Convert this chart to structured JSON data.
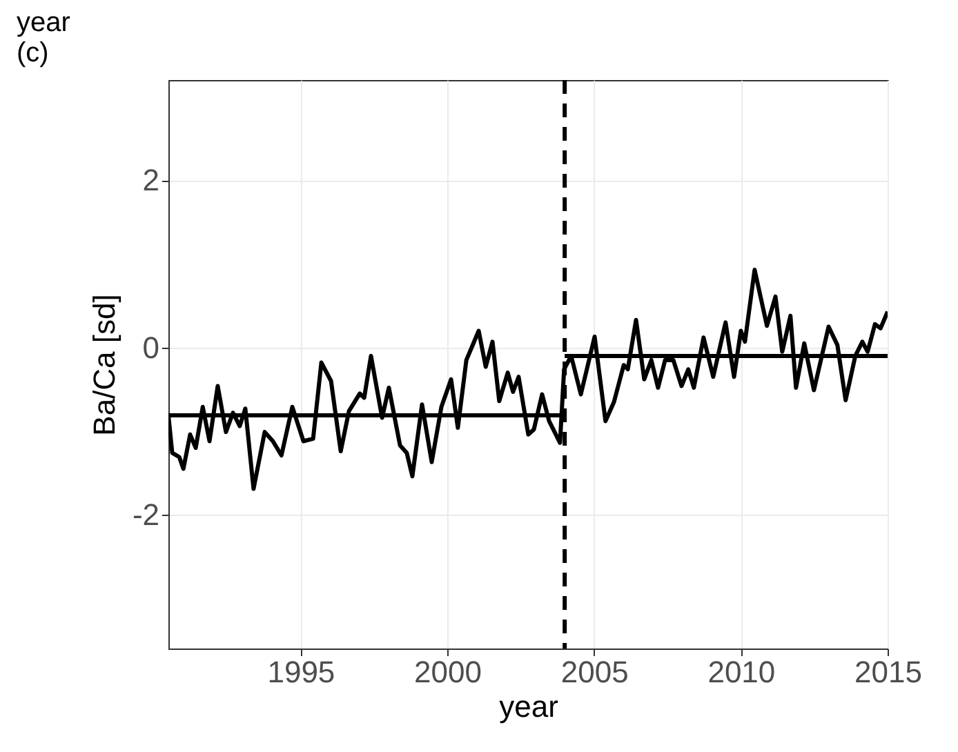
{
  "chart_data": {
    "type": "line",
    "title": "year",
    "subtitle": "(c)",
    "xlabel": "year",
    "ylabel": "Ba/Ca [sd]",
    "xlim": [
      1990.5,
      2015
    ],
    "xticks": [
      1995,
      2000,
      2005,
      2010,
      2015
    ],
    "ylim": [
      -3.6,
      3.2
    ],
    "yticks": [
      -2,
      0,
      2
    ],
    "grid": true,
    "legend": false,
    "line_style": "solid",
    "ref_lines": [
      {
        "axis": "x",
        "value": 2004,
        "line_style": "dashed",
        "color": "#000000"
      }
    ],
    "series": [
      {
        "color": "#000000",
        "x": [
          1990.5,
          1990.63,
          1990.87,
          1991.01,
          1991.24,
          1991.43,
          1991.67,
          1991.9,
          1992.18,
          1992.46,
          1992.7,
          1992.93,
          1993.12,
          1993.4,
          1993.78,
          1994.06,
          1994.35,
          1994.72,
          1995.1,
          1995.43,
          1995.71,
          1996.04,
          1996.37,
          1996.65,
          1997.02,
          1997.17,
          1997.4,
          1997.78,
          1998.01,
          1998.39,
          1998.62,
          1998.81,
          1999.14,
          1999.47,
          1999.8,
          2000.13,
          2000.36,
          2000.65,
          2001.07,
          2001.31,
          2001.54,
          2001.77,
          2002.06,
          2002.24,
          2002.43,
          2002.76,
          2002.95,
          2003.23,
          2003.47,
          2003.84,
          2003.98,
          2004.22,
          2004.55,
          2005.02,
          2005.39,
          2005.68,
          2006.01,
          2006.15,
          2006.43,
          2006.71,
          2006.95,
          2007.18,
          2007.42,
          2007.7,
          2007.98,
          2008.21,
          2008.4,
          2008.73,
          2009.06,
          2009.48,
          2009.77,
          2010.0,
          2010.14,
          2010.47,
          2010.89,
          2011.18,
          2011.41,
          2011.69,
          2011.88,
          2012.16,
          2012.49,
          2012.99,
          2013.29,
          2013.57,
          2013.9,
          2014.14,
          2014.32,
          2014.57,
          2014.76,
          2015.0
        ],
        "values": [
          -0.81,
          -1.26,
          -1.31,
          -1.45,
          -1.04,
          -1.2,
          -0.71,
          -1.12,
          -0.46,
          -1.01,
          -0.78,
          -0.94,
          -0.73,
          -1.69,
          -1.01,
          -1.12,
          -1.29,
          -0.71,
          -1.12,
          -1.09,
          -0.18,
          -0.4,
          -1.24,
          -0.76,
          -0.55,
          -0.6,
          -0.1,
          -0.84,
          -0.48,
          -1.17,
          -1.26,
          -1.54,
          -0.68,
          -1.37,
          -0.71,
          -0.38,
          -0.96,
          -0.15,
          0.2,
          -0.23,
          0.07,
          -0.64,
          -0.3,
          -0.53,
          -0.35,
          -1.04,
          -0.98,
          -0.56,
          -0.88,
          -1.14,
          -0.26,
          -0.1,
          -0.56,
          0.13,
          -0.88,
          -0.65,
          -0.21,
          -0.26,
          0.33,
          -0.38,
          -0.15,
          -0.48,
          -0.15,
          -0.15,
          -0.46,
          -0.26,
          -0.48,
          0.12,
          -0.35,
          0.3,
          -0.35,
          0.2,
          0.07,
          0.93,
          0.26,
          0.61,
          -0.05,
          0.38,
          -0.48,
          0.05,
          -0.51,
          0.25,
          0.03,
          -0.63,
          -0.1,
          0.07,
          -0.05,
          0.28,
          0.23,
          0.43
        ]
      },
      {
        "type": "line",
        "color": "#000000",
        "x": [
          1990.5,
          2004
        ],
        "values": [
          -0.81,
          -0.81
        ]
      },
      {
        "type": "line",
        "color": "#000000",
        "x": [
          2004,
          2015
        ],
        "values": [
          -0.1,
          -0.1
        ]
      }
    ]
  }
}
